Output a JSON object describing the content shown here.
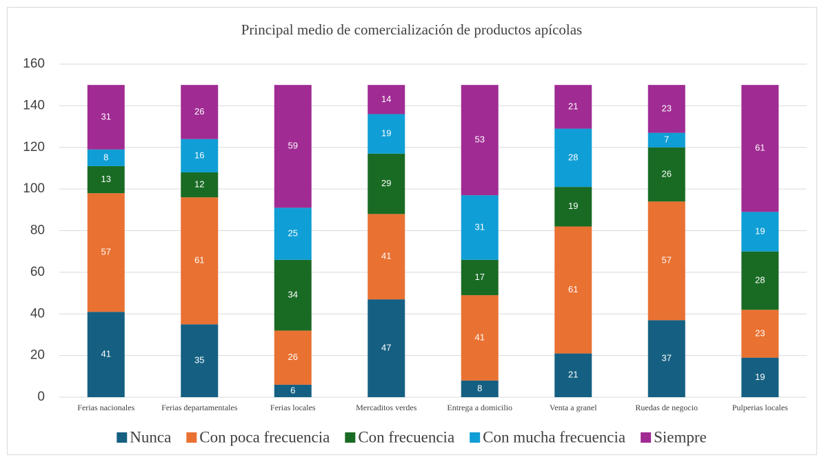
{
  "chart_data": {
    "type": "stacked_bar",
    "title": "Principal medio de comercialización de productos apícolas",
    "categories": [
      "Ferias nacionales",
      "Ferias departamentales",
      "Ferias locales",
      "Mercaditos verdes",
      "Entrega a domicilio",
      "Venta a granel",
      "Ruedas de negocio",
      "Pulperias locales"
    ],
    "series": [
      {
        "name": "Nunca",
        "color": "#156082",
        "values": [
          41,
          35,
          6,
          47,
          8,
          21,
          37,
          19
        ]
      },
      {
        "name": "Con poca frecuencia",
        "color": "#e97132",
        "values": [
          57,
          61,
          26,
          41,
          41,
          61,
          57,
          23
        ]
      },
      {
        "name": "Con frecuencia",
        "color": "#196b24",
        "values": [
          13,
          12,
          34,
          29,
          17,
          19,
          26,
          28
        ]
      },
      {
        "name": "Con mucha frecuencia",
        "color": "#0f9ed5",
        "values": [
          8,
          16,
          25,
          19,
          31,
          28,
          7,
          19
        ]
      },
      {
        "name": "Siempre",
        "color": "#a02b93",
        "values": [
          31,
          26,
          59,
          14,
          53,
          21,
          23,
          61
        ]
      }
    ],
    "ylim": [
      0,
      160
    ],
    "yticks": [
      0,
      20,
      40,
      60,
      80,
      100,
      120,
      140,
      160
    ],
    "grid": true,
    "legend": "bottom"
  }
}
